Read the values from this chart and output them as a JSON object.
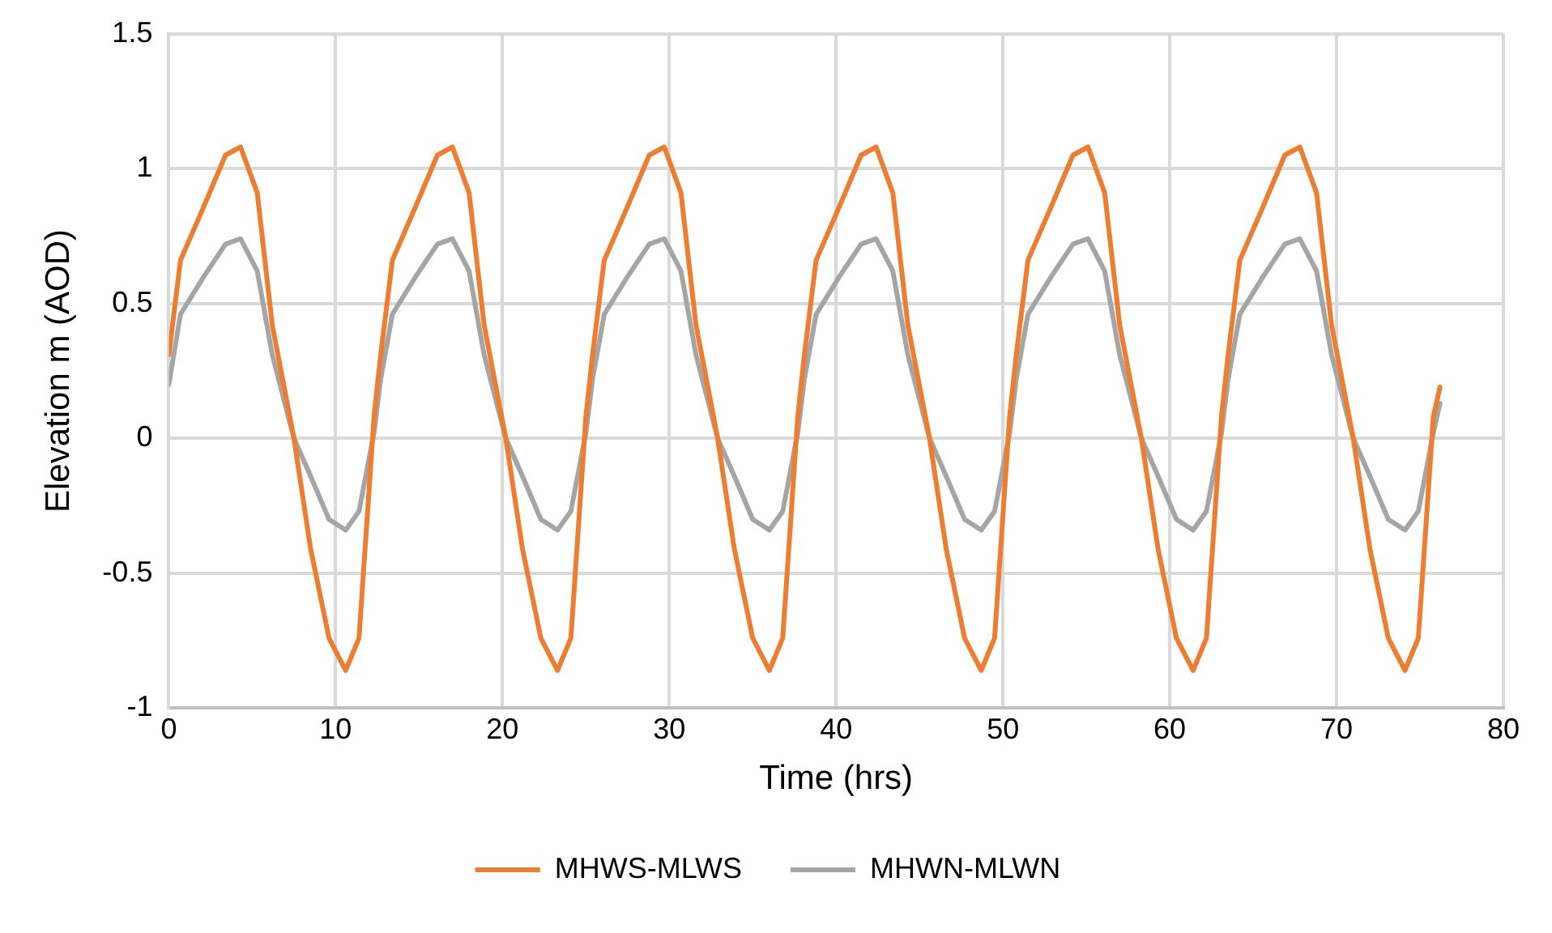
{
  "chart_data": {
    "type": "line",
    "xlabel": "Time (hrs)",
    "ylabel": "Elevation m (AOD)",
    "x": [
      0,
      0.7,
      2.1,
      3.4,
      4.3,
      5.3,
      6.2,
      7.5,
      8.5,
      9.6,
      10.6,
      11.4,
      12.3,
      12.7,
      13.4,
      14.8,
      16.1,
      17,
      18,
      18.9,
      20.2,
      21.2,
      22.3,
      23.3,
      24.1,
      25,
      25.4,
      26.1,
      27.5,
      28.8,
      29.7,
      30.7,
      31.6,
      32.9,
      33.9,
      35,
      36,
      36.8,
      37.7,
      38.1,
      38.8,
      40.2,
      41.5,
      42.4,
      43.4,
      44.3,
      45.6,
      46.6,
      47.7,
      48.7,
      49.5,
      50.4,
      50.8,
      51.5,
      52.9,
      54.2,
      55.1,
      56.1,
      57,
      58.3,
      59.3,
      60.4,
      61.4,
      62.2,
      63.1,
      63.5,
      64.2,
      65.6,
      66.9,
      67.8,
      68.8,
      69.7,
      71,
      72,
      73.1,
      74.1,
      74.9,
      75.8,
      76.2
    ],
    "series": [
      {
        "name": "MHWS-MLWS",
        "color": "#ed7d31",
        "values": [
          0.31,
          0.66,
          0.86,
          1.05,
          1.08,
          0.91,
          0.42,
          0,
          -0.41,
          -0.74,
          -0.86,
          -0.74,
          0.08,
          0.31,
          0.66,
          0.86,
          1.05,
          1.08,
          0.91,
          0.42,
          0,
          -0.41,
          -0.74,
          -0.86,
          -0.74,
          0.08,
          0.31,
          0.66,
          0.86,
          1.05,
          1.08,
          0.91,
          0.42,
          0,
          -0.41,
          -0.74,
          -0.86,
          -0.74,
          0.08,
          0.31,
          0.66,
          0.86,
          1.05,
          1.08,
          0.91,
          0.42,
          0,
          -0.41,
          -0.74,
          -0.86,
          -0.74,
          0.08,
          0.31,
          0.66,
          0.86,
          1.05,
          1.08,
          0.91,
          0.42,
          0,
          -0.41,
          -0.74,
          -0.86,
          -0.74,
          0.08,
          0.31,
          0.66,
          0.86,
          1.05,
          1.08,
          0.91,
          0.42,
          0,
          -0.41,
          -0.74,
          -0.86,
          -0.74,
          0.08,
          0.19
        ]
      },
      {
        "name": "MHWN-MLWN",
        "color": "#a5a5a5",
        "values": [
          0.2,
          0.46,
          0.6,
          0.72,
          0.74,
          0.62,
          0.31,
          0,
          -0.14,
          -0.3,
          -0.34,
          -0.27,
          0.02,
          0.22,
          0.46,
          0.6,
          0.72,
          0.74,
          0.62,
          0.31,
          0,
          -0.14,
          -0.3,
          -0.34,
          -0.27,
          0.02,
          0.22,
          0.46,
          0.6,
          0.72,
          0.74,
          0.62,
          0.31,
          0,
          -0.14,
          -0.3,
          -0.34,
          -0.27,
          0.02,
          0.22,
          0.46,
          0.6,
          0.72,
          0.74,
          0.62,
          0.31,
          0,
          -0.14,
          -0.3,
          -0.34,
          -0.27,
          0.02,
          0.22,
          0.46,
          0.6,
          0.72,
          0.74,
          0.62,
          0.31,
          0,
          -0.14,
          -0.3,
          -0.34,
          -0.27,
          0.02,
          0.22,
          0.46,
          0.6,
          0.72,
          0.74,
          0.62,
          0.31,
          0,
          -0.14,
          -0.3,
          -0.34,
          -0.27,
          0.02,
          0.13
        ]
      }
    ],
    "xlim": [
      0,
      80
    ],
    "xticks": [
      0,
      10,
      20,
      30,
      40,
      50,
      60,
      70,
      80
    ],
    "ylim": [
      -1,
      1.5
    ],
    "yticks": [
      -1,
      -0.5,
      0,
      0.5,
      1,
      1.5
    ],
    "grid": true,
    "legend": "bottom",
    "marker": "none",
    "line_style": "solid"
  }
}
